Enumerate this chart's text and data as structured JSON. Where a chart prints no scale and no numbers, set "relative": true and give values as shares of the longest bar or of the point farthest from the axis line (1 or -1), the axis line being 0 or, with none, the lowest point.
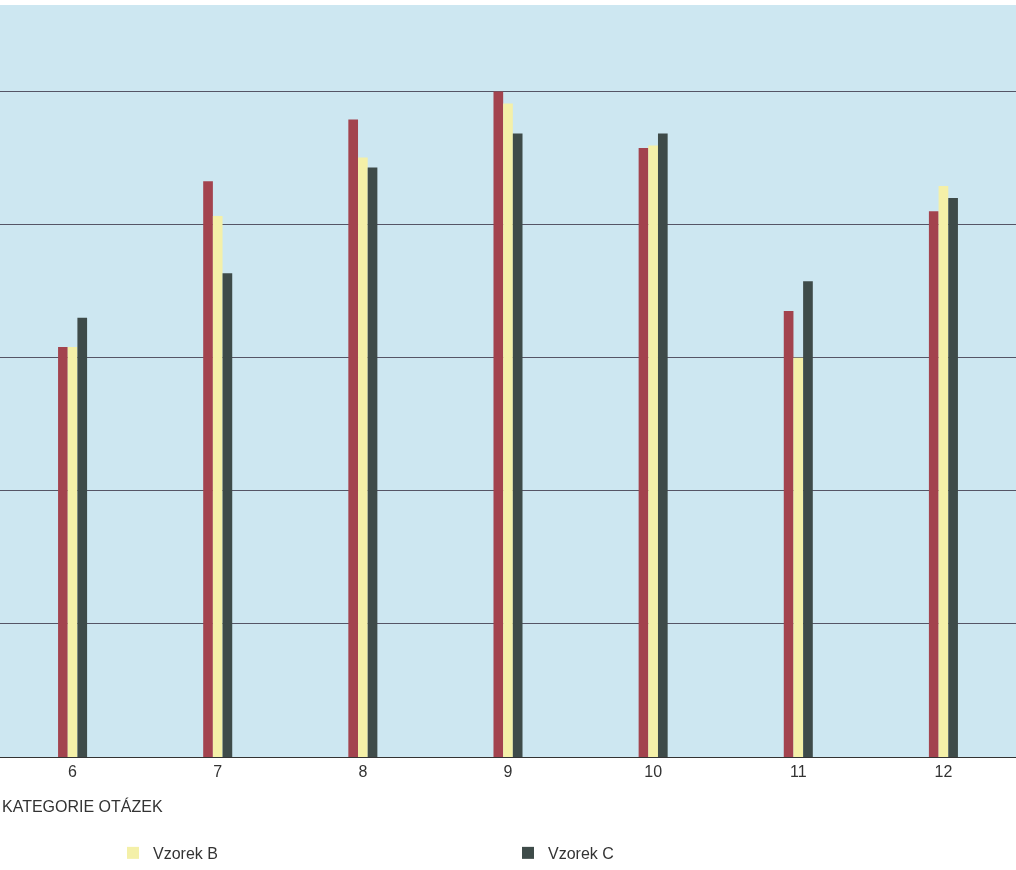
{
  "chart_data": {
    "type": "bar",
    "relative": true,
    "xlabel": "KATEGORIE OTÁZEK",
    "categories": [
      "6",
      "7",
      "8",
      "9",
      "10",
      "11",
      "12"
    ],
    "grid": "y",
    "legend": "bottom",
    "series": [
      {
        "color": "#a3434e",
        "values": [
          0.616,
          0.865,
          0.958,
          1,
          0.915,
          0.67,
          0.82
        ]
      },
      {
        "name": "Vzorek B",
        "color": "#f4f0a8",
        "values": [
          0.616,
          0.813,
          0.901,
          0.982,
          0.919,
          0.6,
          0.858
        ]
      },
      {
        "name": "Vzorek C",
        "color": "#3e4b49",
        "values": [
          0.66,
          0.727,
          0.886,
          0.937,
          0.937,
          0.715,
          0.84
        ]
      }
    ]
  }
}
